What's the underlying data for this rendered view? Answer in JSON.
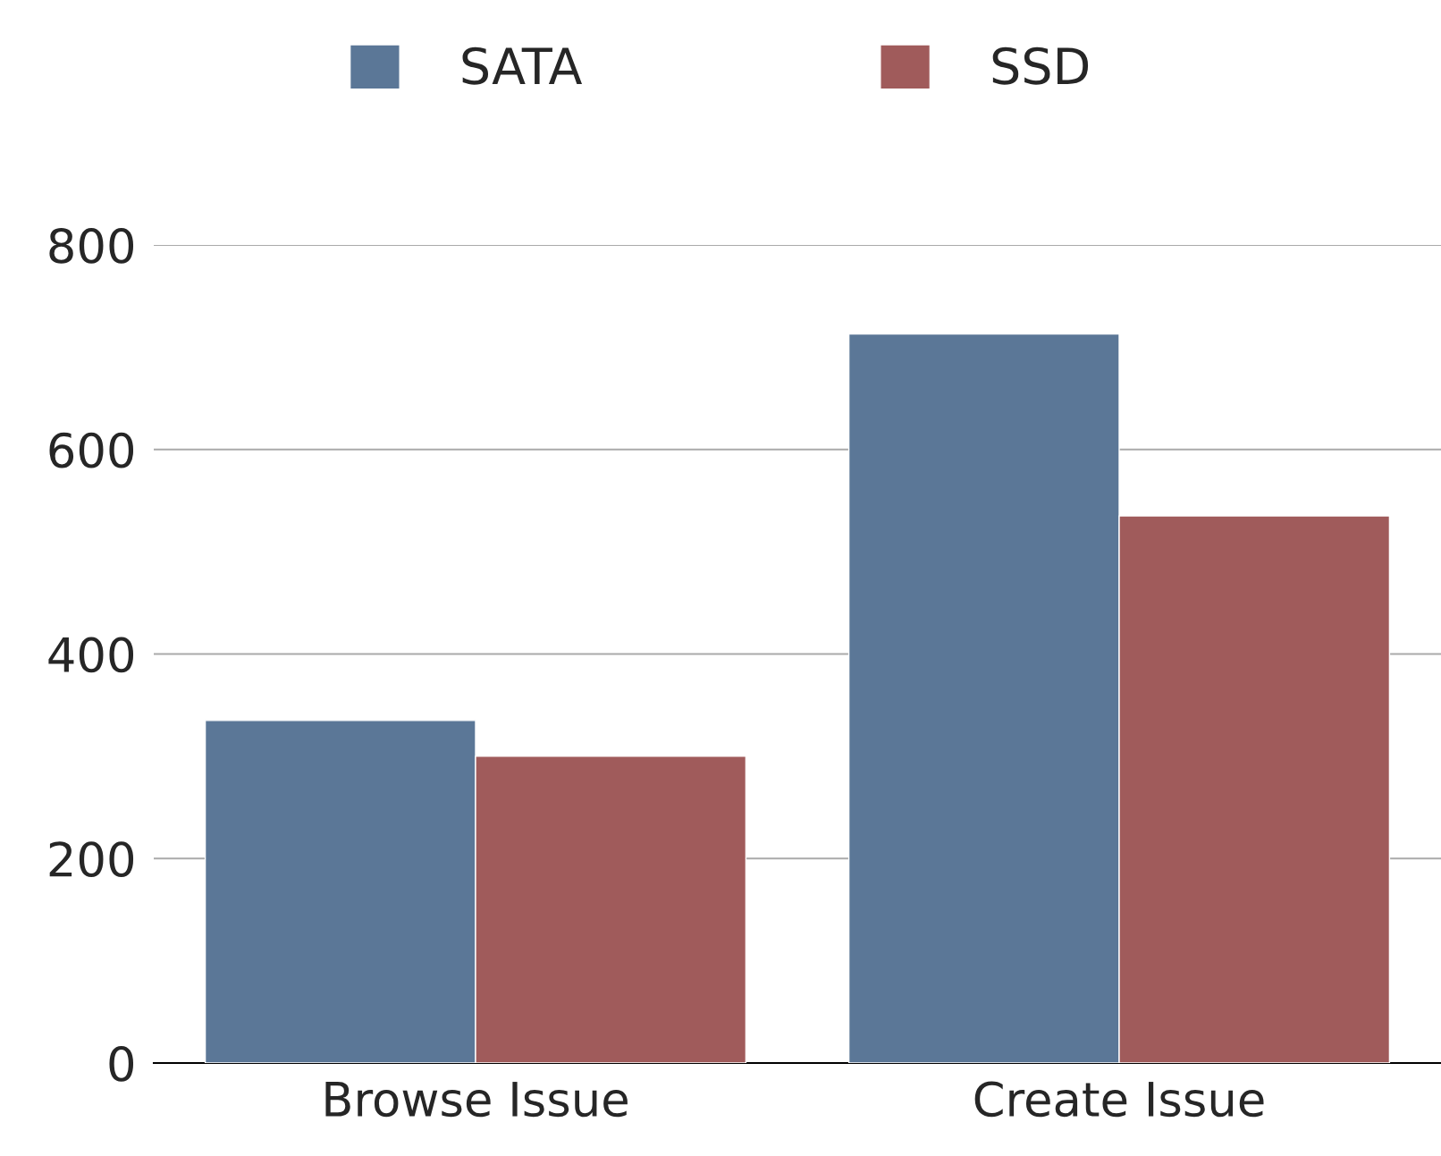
{
  "chart_data": {
    "type": "bar",
    "categories": [
      "Browse Issue",
      "Create Issue"
    ],
    "series": [
      {
        "name": "SATA",
        "color": "#5b7797",
        "values": [
          335,
          713
        ]
      },
      {
        "name": "SSD",
        "color": "#a05b5b",
        "values": [
          300,
          535
        ]
      }
    ],
    "ylim": [
      0,
      800
    ],
    "yticks": [
      0,
      200,
      400,
      600,
      800
    ],
    "grid": "y",
    "legend": "top"
  }
}
